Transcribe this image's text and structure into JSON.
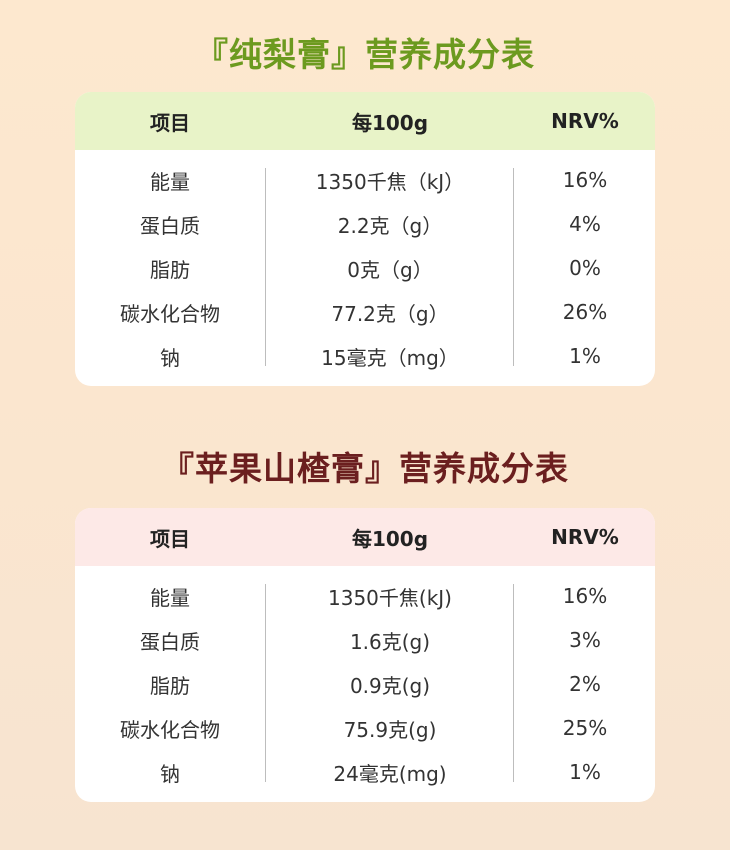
{
  "tables": [
    {
      "title": "『纯梨膏』营养成分表",
      "header": {
        "item": "项目",
        "per": "每100g",
        "nrv": "NRV%"
      },
      "rows": [
        {
          "item": "能量",
          "per": "1350千焦（kJ）",
          "nrv": "16%"
        },
        {
          "item": "蛋白质",
          "per": "2.2克（g）",
          "nrv": "4%"
        },
        {
          "item": "脂肪",
          "per": "0克（g）",
          "nrv": "0%"
        },
        {
          "item": "碳水化合物",
          "per": "77.2克（g）",
          "nrv": "26%"
        },
        {
          "item": "钠",
          "per": "15毫克（mg）",
          "nrv": "1%"
        }
      ]
    },
    {
      "title": "『苹果山楂膏』营养成分表",
      "header": {
        "item": "项目",
        "per": "每100g",
        "nrv": "NRV%"
      },
      "rows": [
        {
          "item": "能量",
          "per": "1350千焦(kJ)",
          "nrv": "16%"
        },
        {
          "item": "蛋白质",
          "per": "1.6克(g)",
          "nrv": "3%"
        },
        {
          "item": "脂肪",
          "per": "0.9克(g)",
          "nrv": "2%"
        },
        {
          "item": "碳水化合物",
          "per": "75.9克(g)",
          "nrv": "25%"
        },
        {
          "item": "钠",
          "per": "24毫克(mg)",
          "nrv": "1%"
        }
      ]
    }
  ],
  "colors": {
    "title1": "#6c9a1f",
    "title2": "#6b1f1f",
    "head1": "#e8f3c8",
    "head2": "#fde9e7"
  }
}
